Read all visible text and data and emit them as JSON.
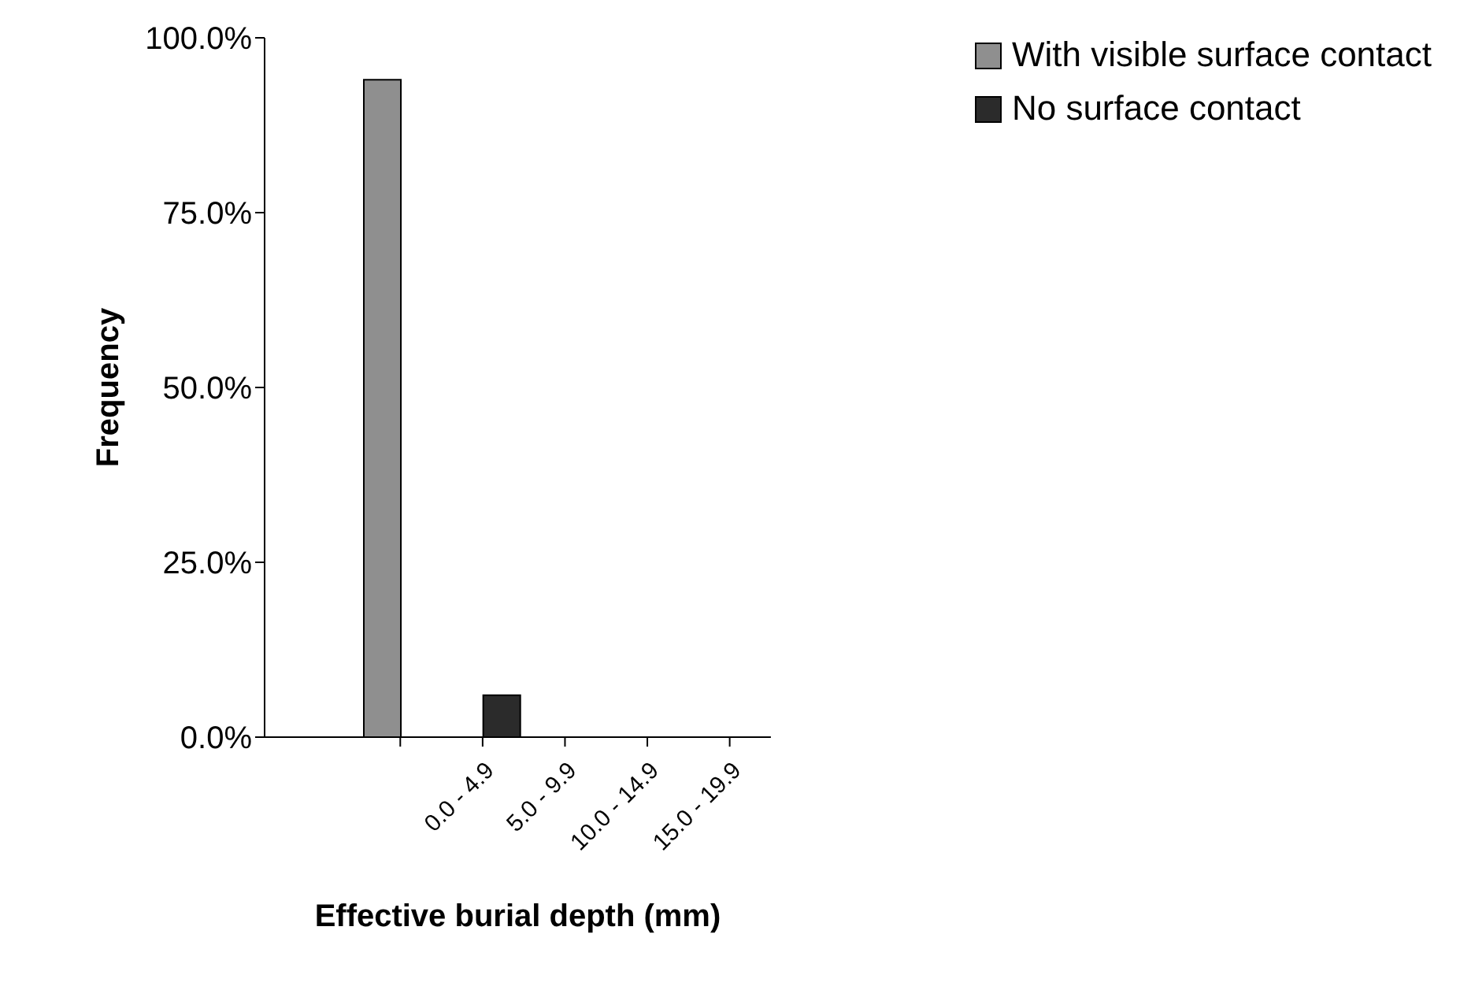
{
  "chart_data": {
    "type": "bar",
    "xlabel": "Effective burial depth (mm)",
    "ylabel": "Frequency",
    "categories": [
      null,
      "0.0 - 4.9",
      "5.0 - 9.9",
      "10.0 - 14.9",
      "15.0 - 19.9"
    ],
    "series": [
      {
        "name": "With visible surface contact",
        "color": "#8f8f8f",
        "values": [
          94,
          null,
          null,
          null,
          null
        ]
      },
      {
        "name": "No surface contact",
        "color": "#2b2b2b",
        "values": [
          null,
          6,
          null,
          null,
          null
        ]
      }
    ],
    "ylim": [
      0,
      100
    ],
    "yticks": [
      {
        "value": 0,
        "label": "0.0%"
      },
      {
        "value": 25,
        "label": "25.0%"
      },
      {
        "value": 50,
        "label": "50.0%"
      },
      {
        "value": 75,
        "label": "75.0%"
      },
      {
        "value": 100,
        "label": "100.0%"
      }
    ],
    "grid": false,
    "legend": "top right"
  }
}
